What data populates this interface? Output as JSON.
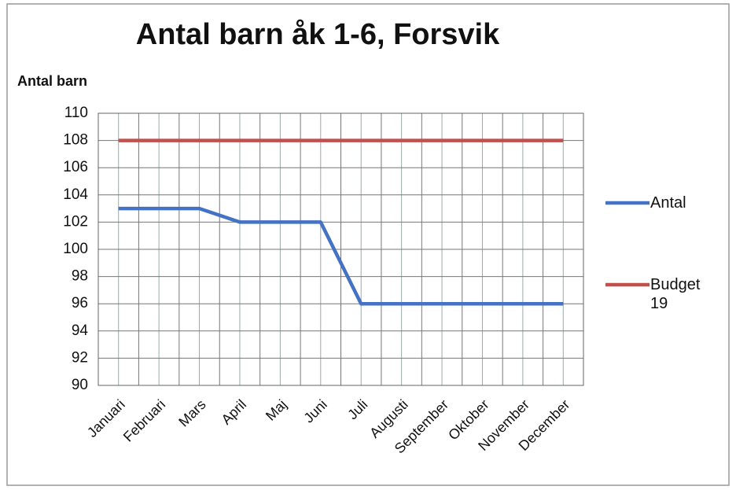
{
  "chart_data": {
    "type": "line",
    "title": "Antal barn åk  1-6, Forsvik",
    "y_label": "Antal barn",
    "categories": [
      "Januari",
      "Februari",
      "Mars",
      "April",
      "Maj",
      "Juni",
      "Juli",
      "Augusti",
      "September",
      "Oktober",
      "November",
      "December"
    ],
    "series": [
      {
        "name": "Antal",
        "color": "#4472c4",
        "values": [
          103,
          103,
          103,
          102,
          102,
          102,
          96,
          96,
          96,
          96,
          96,
          96
        ]
      },
      {
        "name": "Budget 19",
        "color": "#c0504d",
        "values": [
          108,
          108,
          108,
          108,
          108,
          108,
          108,
          108,
          108,
          108,
          108,
          108
        ]
      }
    ],
    "ylim": [
      90,
      110
    ],
    "yticks": [
      90,
      92,
      94,
      96,
      98,
      100,
      102,
      104,
      106,
      108,
      110
    ],
    "grid": true,
    "legend": "right"
  }
}
